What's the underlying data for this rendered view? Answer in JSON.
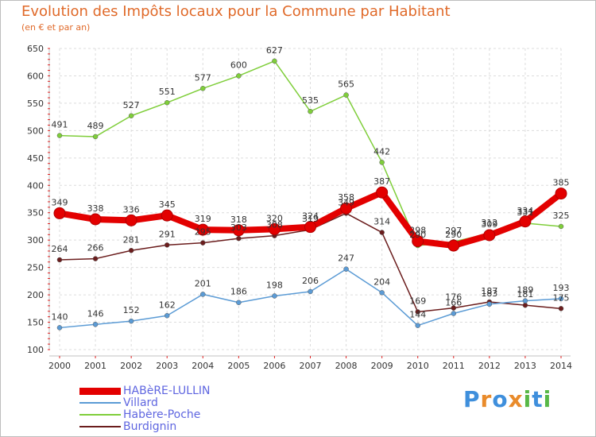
{
  "title": "Evolution des Impôts locaux pour la Commune par Habitant",
  "subtitle": "(en € et par an)",
  "logo": {
    "text": "Proxiti",
    "colors": [
      "#3f8fdc",
      "#e98b2b",
      "#58b847"
    ]
  },
  "chart_data": {
    "type": "line",
    "title": "Evolution des Impôts locaux pour la Commune par Habitant",
    "subtitle": "(en € et par an)",
    "x": [
      2000,
      2001,
      2002,
      2003,
      2004,
      2005,
      2006,
      2007,
      2008,
      2009,
      2010,
      2011,
      2012,
      2013,
      2014
    ],
    "ylim": [
      100,
      650
    ],
    "yticks": [
      100,
      150,
      200,
      250,
      300,
      350,
      400,
      450,
      500,
      550,
      600,
      650
    ],
    "grid": true,
    "legend_position": "bottom-left",
    "series": [
      {
        "name": "HABèRE-LULLIN",
        "color": "#e30000",
        "width": 8,
        "values": [
          349,
          338,
          336,
          345,
          319,
          318,
          320,
          324,
          358,
          387,
          298,
          290,
          309,
          334,
          385
        ],
        "labels": [
          "349",
          "338",
          "336",
          "345",
          "319",
          "318",
          "320",
          "324",
          "358",
          "387",
          "298",
          "290",
          "309",
          "334",
          "385"
        ]
      },
      {
        "name": "Villard",
        "color": "#5b9bd5",
        "width": 1.5,
        "values": [
          140,
          146,
          152,
          162,
          201,
          186,
          198,
          206,
          247,
          204,
          144,
          166,
          183,
          189,
          193
        ],
        "labels": [
          "140",
          "146",
          "152",
          "162",
          "201",
          "186",
          "198",
          "206",
          "247",
          "204",
          "144",
          "166",
          "183",
          "189",
          "193"
        ]
      },
      {
        "name": "Habère-Poche",
        "color": "#7fce3a",
        "width": 1.5,
        "values": [
          491,
          489,
          527,
          551,
          577,
          600,
          627,
          535,
          565,
          442,
          290,
          297,
          312,
          331,
          325
        ],
        "labels": [
          "491",
          "489",
          "527",
          "551",
          "577",
          "600",
          "627",
          "535",
          "565",
          "442",
          "290",
          "297",
          "312",
          "331",
          "325"
        ]
      },
      {
        "name": "Burdignin",
        "color": "#6b1d1d",
        "width": 1.5,
        "values": [
          264,
          266,
          281,
          291,
          295,
          303,
          308,
          319,
          349,
          314,
          169,
          176,
          187,
          181,
          175
        ],
        "labels": [
          "264",
          "266",
          "281",
          "291",
          "295",
          "303",
          "308",
          "319",
          "349",
          "314",
          "169",
          "176",
          "187",
          "181",
          "175"
        ]
      }
    ]
  }
}
